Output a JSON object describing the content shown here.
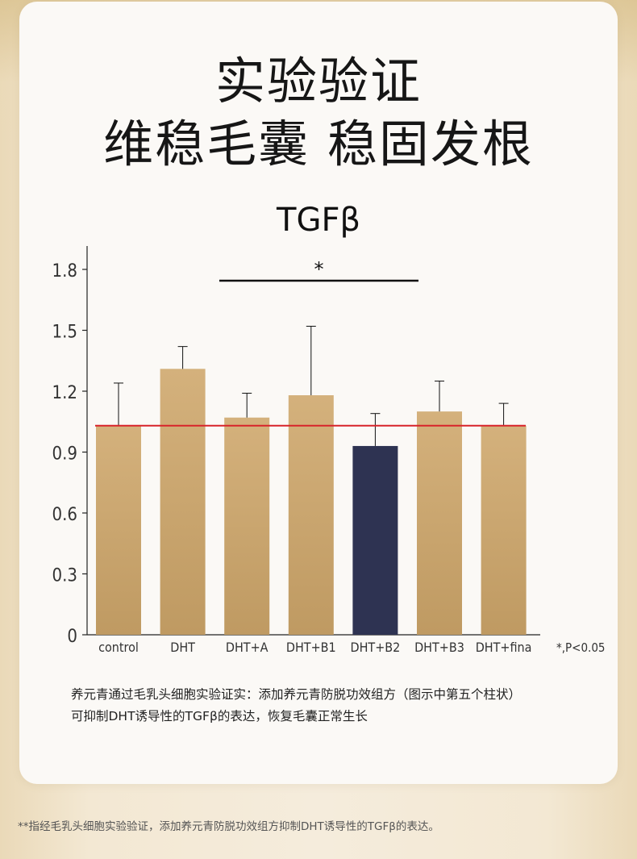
{
  "headline": {
    "line1": "实验验证",
    "line2": "维稳毛囊 稳固发根"
  },
  "chart_data": {
    "type": "bar",
    "title": "TGFβ",
    "categories": [
      "control",
      "DHT",
      "DHT+A",
      "DHT+B1",
      "DHT+B2",
      "DHT+B3",
      "DHT+fina"
    ],
    "values": [
      1.03,
      1.31,
      1.07,
      1.18,
      0.93,
      1.1,
      1.03
    ],
    "errors": [
      0.21,
      0.11,
      0.12,
      0.34,
      0.16,
      0.15,
      0.11
    ],
    "yticks": [
      "0",
      "0.3",
      "0.6",
      "0.9",
      "1.2",
      "1.5",
      "1.8"
    ],
    "ylim": [
      0,
      1.8
    ],
    "reference_line": 1.03,
    "significance": {
      "from": 1,
      "to": 4,
      "label": "*"
    },
    "note": "*,P<0.05",
    "highlight_index": 4,
    "colors": {
      "bar": "#c9a670",
      "bar_highlight": "#2e3352",
      "reference": "#d8232a",
      "axis": "#222222"
    },
    "grid": false,
    "legend": "none"
  },
  "caption": {
    "line1": "养元青通过毛乳头细胞实验证实：添加养元青防脱功效组方（图示中第五个柱状）",
    "line2": "可抑制DHT诱导性的TGFβ的表达，恢复毛囊正常生长"
  },
  "footnote": "**指经毛乳头细胞实验验证，添加养元青防脱功效组方抑制DHT诱导性的TGFβ的表达。"
}
